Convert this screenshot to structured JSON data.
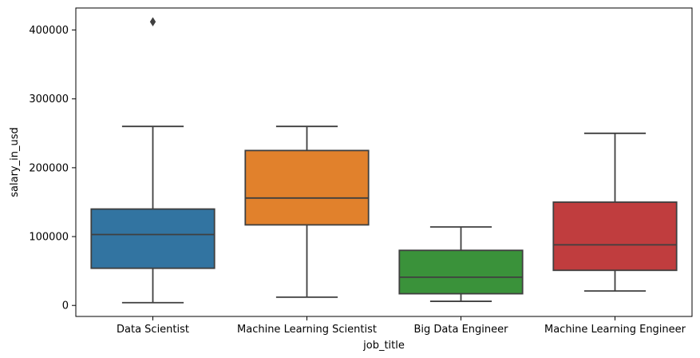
{
  "chart_data": {
    "type": "box",
    "xlabel": "job_title",
    "ylabel": "salary_in_usd",
    "ylim": [
      -16000,
      432000
    ],
    "yticks": [
      0,
      100000,
      200000,
      300000,
      400000
    ],
    "ytick_labels": [
      "0",
      "100000",
      "200000",
      "300000",
      "400000"
    ],
    "grid": false,
    "categories": [
      "Data Scientist",
      "Machine Learning Scientist",
      "Big Data Engineer",
      "Machine Learning Engineer"
    ],
    "boxes": [
      {
        "category": "Data Scientist",
        "color": "#3274a1",
        "whisker_low": 4000,
        "q1": 54000,
        "median": 103000,
        "q3": 140000,
        "whisker_high": 260000,
        "outliers": [
          412000
        ]
      },
      {
        "category": "Machine Learning Scientist",
        "color": "#e1812c",
        "whisker_low": 12000,
        "q1": 117000,
        "median": 156000,
        "q3": 225000,
        "whisker_high": 260000,
        "outliers": []
      },
      {
        "category": "Big Data Engineer",
        "color": "#3a923a",
        "whisker_low": 6000,
        "q1": 17000,
        "median": 41000,
        "q3": 80000,
        "whisker_high": 114000,
        "outliers": []
      },
      {
        "category": "Machine Learning Engineer",
        "color": "#c03d3e",
        "whisker_low": 21000,
        "q1": 51000,
        "median": 88000,
        "q3": 150000,
        "whisker_high": 250000,
        "outliers": []
      }
    ]
  }
}
